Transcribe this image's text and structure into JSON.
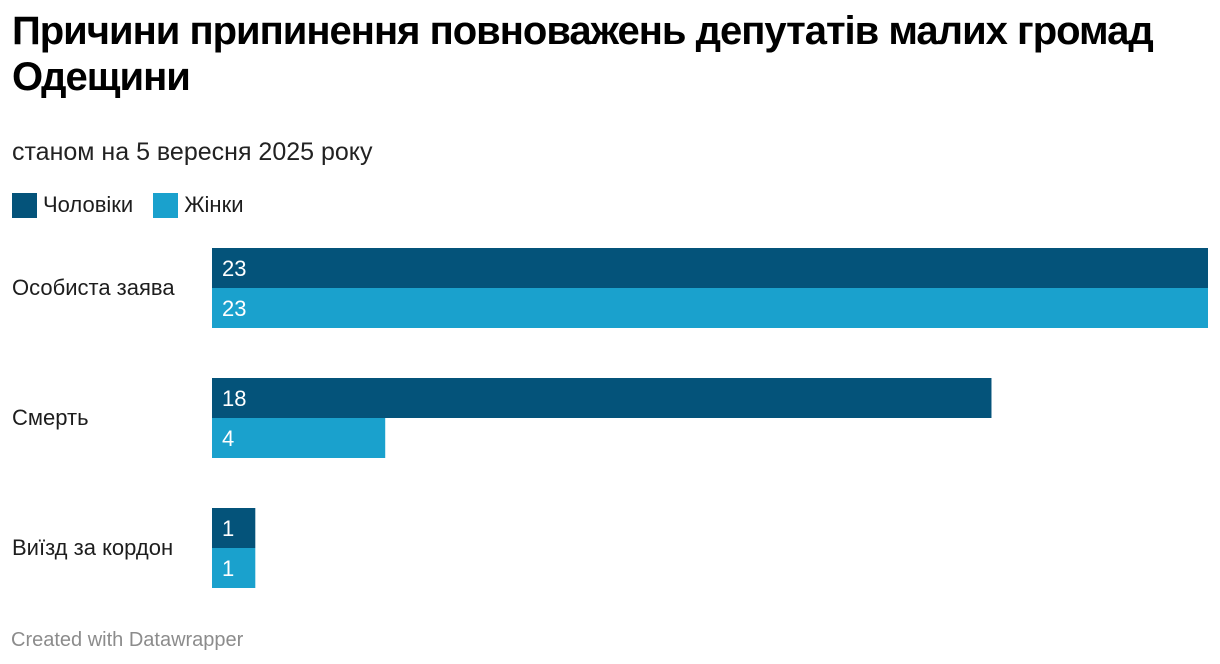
{
  "chart_data": {
    "type": "bar",
    "orientation": "horizontal",
    "title": "Причини припинення повноважень депутатів малих громад Одещини",
    "subtitle": "станом на 5 вересня 2025 року",
    "categories": [
      "Особиста заява",
      "Смерть",
      "Виїзд за кордон"
    ],
    "series": [
      {
        "name": "Чоловіки",
        "color": "#04537a",
        "values": [
          23,
          18,
          1
        ]
      },
      {
        "name": "Жінки",
        "color": "#1aa1cd",
        "values": [
          23,
          4,
          1
        ]
      }
    ],
    "xlim": [
      0,
      23
    ],
    "grid": false,
    "legend_position": "top-left",
    "value_labels": "inside-start"
  },
  "footer": {
    "credit": "Created with Datawrapper"
  }
}
